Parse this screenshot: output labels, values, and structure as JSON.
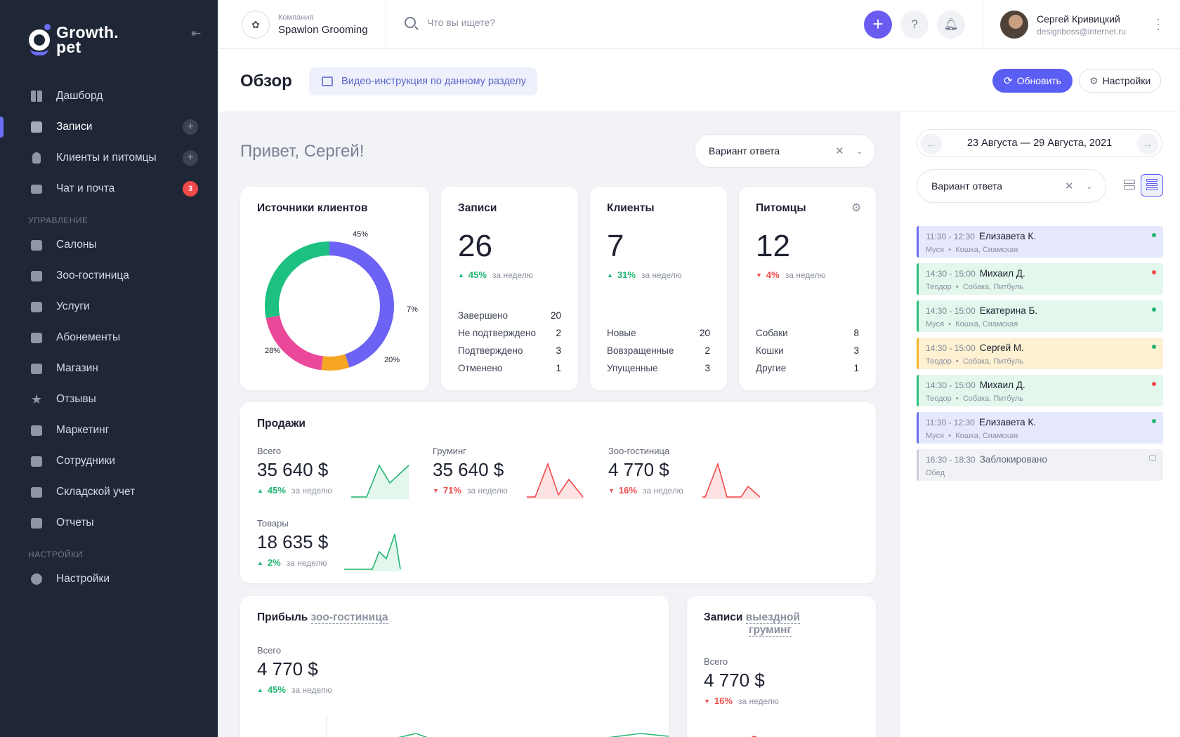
{
  "brand": {
    "line1": "Growth.",
    "line2": "pet"
  },
  "sidebar": {
    "collapse_icon": "collapse-left-icon",
    "items": [
      {
        "label": "Дашборд",
        "icon": "dashboard-icon"
      },
      {
        "label": "Записи",
        "icon": "calendar-check-icon",
        "action": "+"
      },
      {
        "label": "Клиенты и питомцы",
        "icon": "user-icon",
        "action": "+"
      },
      {
        "label": "Чат и почта",
        "icon": "chat-icon",
        "badge": "3"
      }
    ],
    "section_manage": "Управление",
    "manage_items": [
      {
        "label": "Салоны",
        "icon": "salon-icon"
      },
      {
        "label": "Зоо-гостиница",
        "icon": "home-icon"
      },
      {
        "label": "Услуги",
        "icon": "clipboard-icon"
      },
      {
        "label": "Абонементы",
        "icon": "card-icon"
      },
      {
        "label": "Магазин",
        "icon": "basket-icon"
      },
      {
        "label": "Отзывы",
        "icon": "star-icon"
      },
      {
        "label": "Маркетинг",
        "icon": "mail-icon"
      },
      {
        "label": "Сотрудники",
        "icon": "team-icon"
      },
      {
        "label": "Складской учет",
        "icon": "warehouse-icon"
      },
      {
        "label": "Отчеты",
        "icon": "chart-icon"
      }
    ],
    "section_settings": "Настройки",
    "settings_items": [
      {
        "label": "Настройки",
        "icon": "gear-icon"
      }
    ]
  },
  "topbar": {
    "company_caption": "Компания",
    "company_name": "Spawlon Grooming",
    "search_placeholder": "Что вы ищете?",
    "user_name": "Сергей Кривицкий",
    "user_email": "designboss@internet.ru"
  },
  "header": {
    "title": "Обзор",
    "video_label": "Видео-инструкция по данному разделу",
    "refresh_label": "Обновить",
    "settings_label": "Настройки"
  },
  "greeting": "Привет, Сергей!",
  "filter_value": "Вариант ответа",
  "sources": {
    "title": "Источники клиентов",
    "chart_data": {
      "type": "pie",
      "categories": [
        "45%",
        "7%",
        "20%",
        "28%"
      ],
      "values": [
        45,
        7,
        20,
        28
      ],
      "colors": [
        "#6c62f3",
        "#f6a623",
        "#ec4899",
        "#1cc081"
      ]
    }
  },
  "records": {
    "title": "Записи",
    "value": "26",
    "delta": "45%",
    "period": "за неделю",
    "rows": [
      {
        "label": "Завершено",
        "value": "20"
      },
      {
        "label": "Не подтверждено",
        "value": "2"
      },
      {
        "label": "Подтверждено",
        "value": "3"
      },
      {
        "label": "Отменено",
        "value": "1"
      }
    ]
  },
  "clients": {
    "title": "Клиенты",
    "value": "7",
    "delta": "31%",
    "period": "за неделю",
    "rows": [
      {
        "label": "Новые",
        "value": "20"
      },
      {
        "label": "Вовзращенные",
        "value": "2"
      },
      {
        "label": "Упущенные",
        "value": "3"
      }
    ]
  },
  "pets": {
    "title": "Питомцы",
    "value": "12",
    "delta": "4%",
    "period": "за неделю",
    "rows": [
      {
        "label": "Собаки",
        "value": "8"
      },
      {
        "label": "Кошки",
        "value": "3"
      },
      {
        "label": "Другие",
        "value": "1"
      }
    ]
  },
  "sales": {
    "title": "Продажи",
    "items": [
      {
        "label": "Всего",
        "value": "35 640 $",
        "delta": "45%",
        "period": "за неделю",
        "trend": "up"
      },
      {
        "label": "Груминг",
        "value": "35 640 $",
        "delta": "71%",
        "period": "за неделю",
        "trend": "down"
      },
      {
        "label": "Зоо-гостиница",
        "value": "4 770 $",
        "delta": "16%",
        "period": "за неделю",
        "trend": "down"
      },
      {
        "label": "Товары",
        "value": "18 635 $",
        "delta": "2%",
        "period": "за неделю",
        "trend": "up"
      }
    ]
  },
  "profit": {
    "title": "Прибыль",
    "title_link": "зоо-гостиница",
    "label": "Всего",
    "value": "4 770 $",
    "delta": "45%",
    "period": "за неделю"
  },
  "onsite": {
    "title": "Записи",
    "title_link1": "выездной",
    "title_link2": "груминг",
    "label": "Всего",
    "value": "4 770 $",
    "delta": "16%",
    "period": "за неделю"
  },
  "calendar": {
    "range": "23 Августа — 29 Августа, 2021",
    "filter_value": "Вариант ответа",
    "appointments": [
      {
        "time": "11:30 - 12:30",
        "name": "Елизавета К.",
        "pet": "Муся",
        "breed": "Кошка, Сиамская",
        "color": "#6b6ef2",
        "bg": "#e6e8fd",
        "dot": "#22b573"
      },
      {
        "time": "14:30 - 15:00",
        "name": "Михаил Д.",
        "pet": "Теодор",
        "breed": "Собака, Питбуль",
        "color": "#2bbf7a",
        "bg": "#e3f7ec",
        "dot": "#ef4b4b"
      },
      {
        "time": "14:30 - 15:00",
        "name": "Екатерина Б.",
        "pet": "Муся",
        "breed": "Кошка, Сиамская",
        "color": "#2bbf7a",
        "bg": "#e3f7ec",
        "dot": "#22b573"
      },
      {
        "time": "14:30 - 15:00",
        "name": "Сергей М.",
        "pet": "Теодор",
        "breed": "Собака, Питбуль",
        "color": "#f3b32b",
        "bg": "#fdf1d1",
        "dot": "#22b573"
      },
      {
        "time": "14:30 - 15:00",
        "name": "Михаил Д.",
        "pet": "Теодор",
        "breed": "Собака, Питбуль",
        "color": "#2bbf7a",
        "bg": "#e3f7ec",
        "dot": "#ef4b4b"
      },
      {
        "time": "11:30 - 12:30",
        "name": "Елизавета К.",
        "pet": "Муся",
        "breed": "Кошка, Сиамская",
        "color": "#6b6ef2",
        "bg": "#e6e8fd",
        "dot": "#22b573"
      }
    ],
    "blocked": {
      "time": "16:30 - 18:30",
      "label": "Заблокировано",
      "note": "Обед"
    }
  }
}
